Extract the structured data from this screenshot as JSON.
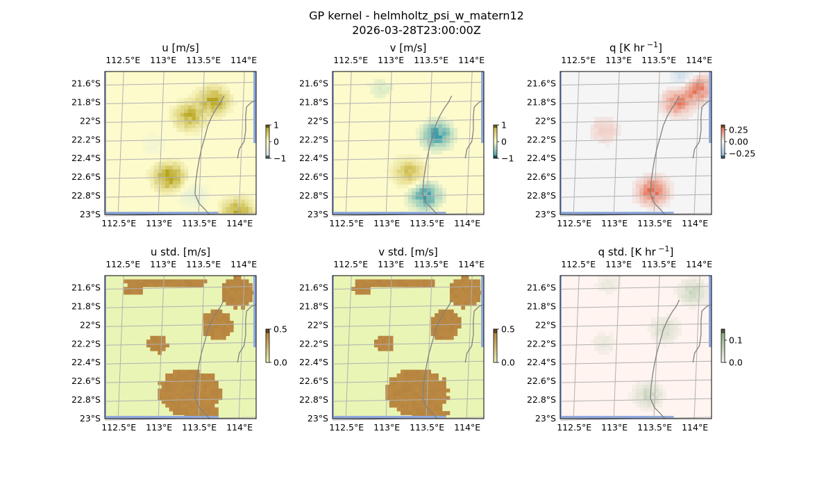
{
  "figure": {
    "title_line1": "GP kernel - helmholtz_psi_w_matern12",
    "title_line2": "2026-03-28T23:00:00Z"
  },
  "chart_data": [
    {
      "type": "heatmap",
      "title": "u [m/s]",
      "x_tick_labels": [
        "112.5°E",
        "113°E",
        "113.5°E",
        "114°E"
      ],
      "y_tick_labels": [
        "21.6°S",
        "21.8°S",
        "22°S",
        "22.2°S",
        "22.4°S",
        "22.6°S",
        "22.8°S",
        "23°S"
      ],
      "colorbar": {
        "ticks": [
          1,
          0,
          -1
        ],
        "tick_labels": [
          "1",
          "0",
          "−1"
        ],
        "range": [
          -1,
          1
        ]
      },
      "colors": {
        "background": "#fdfbcc",
        "positive": "#b7a41f",
        "negative": "#c6dfe3"
      },
      "blobs": [
        {
          "lon": 113.65,
          "lat": -21.78,
          "sign": 1,
          "value": 0.7
        },
        {
          "lon": 113.35,
          "lat": -21.95,
          "sign": 1,
          "value": 0.6
        },
        {
          "lon": 113.1,
          "lat": -22.6,
          "sign": 1,
          "value": 0.8
        },
        {
          "lon": 113.4,
          "lat": -22.8,
          "sign": -1,
          "value": 0.3
        },
        {
          "lon": 112.9,
          "lat": -22.25,
          "sign": -1,
          "value": 0.15
        },
        {
          "lon": 113.95,
          "lat": -22.98,
          "sign": 1,
          "value": 0.7
        }
      ]
    },
    {
      "type": "heatmap",
      "title": "v [m/s]",
      "x_tick_labels": [
        "112.5°E",
        "113°E",
        "113.5°E",
        "114°E"
      ],
      "y_tick_labels": [
        "21.6°S",
        "21.8°S",
        "22°S",
        "22.2°S",
        "22.4°S",
        "22.6°S",
        "22.8°S",
        "23°S"
      ],
      "colorbar": {
        "ticks": [
          1,
          0,
          -1
        ],
        "tick_labels": [
          "1",
          "0",
          "−1"
        ],
        "range": [
          -1,
          1
        ]
      },
      "colors": {
        "background": "#fdfbcc",
        "positive": "#c9b440",
        "negative": "#3a9da8"
      },
      "blobs": [
        {
          "lon": 113.6,
          "lat": -22.15,
          "sign": -1,
          "value": 0.7
        },
        {
          "lon": 113.25,
          "lat": -22.55,
          "sign": 1,
          "value": 0.6
        },
        {
          "lon": 113.45,
          "lat": -22.8,
          "sign": -1,
          "value": 0.7
        },
        {
          "lon": 112.9,
          "lat": -21.65,
          "sign": -1,
          "value": 0.12
        }
      ]
    },
    {
      "type": "heatmap",
      "title": "q [K hr",
      "title_sup": "−1",
      "title_end": "]",
      "x_tick_labels": [
        "112.5°E",
        "113°E",
        "113.5°E",
        "114°E"
      ],
      "y_tick_labels": [
        "21.6°S",
        "21.8°S",
        "22°S",
        "22.2°S",
        "22.4°S",
        "22.6°S",
        "22.8°S",
        "23°S"
      ],
      "colorbar": {
        "ticks": [
          0.25,
          0.0,
          -0.25
        ],
        "tick_labels": [
          "0.25",
          "0.00",
          "−0.25"
        ],
        "range": [
          -0.35,
          0.35
        ]
      },
      "colors": {
        "background": "#f5f5f5",
        "positive": "#e46a4c",
        "negative": "#8fb7d8"
      },
      "blobs": [
        {
          "lon": 113.45,
          "lat": -22.75,
          "sign": 1,
          "value": 0.25
        },
        {
          "lon": 113.75,
          "lat": -21.8,
          "sign": 1,
          "value": 0.2
        },
        {
          "lon": 114.0,
          "lat": -21.65,
          "sign": 1,
          "value": 0.25
        },
        {
          "lon": 113.85,
          "lat": -21.55,
          "sign": -1,
          "value": 0.12
        },
        {
          "lon": 112.85,
          "lat": -22.1,
          "sign": 1,
          "value": 0.08
        }
      ]
    },
    {
      "type": "heatmap",
      "title": "u std. [m/s]",
      "x_tick_labels": [
        "112.5°E",
        "113°E",
        "113.5°E",
        "114°E"
      ],
      "y_tick_labels": [
        "21.6°S",
        "21.8°S",
        "22°S",
        "22.2°S",
        "22.4°S",
        "22.6°S",
        "22.8°S",
        "23°S"
      ],
      "colorbar": {
        "ticks": [
          0.5,
          0.0
        ],
        "tick_labels": [
          "0.5",
          "0.0"
        ],
        "range": [
          0,
          0.5
        ]
      },
      "colors": {
        "background": "#e9f5b5",
        "high": "#bd8a43",
        "low": "#e9f5b5"
      },
      "patches": [
        {
          "lon": 113.35,
          "lat": -22.72,
          "rx": 0.42,
          "ry": 0.26
        },
        {
          "lon": 113.5,
          "lat": -22.95,
          "rx": 0.25,
          "ry": 0.1
        },
        {
          "lon": 112.95,
          "lat": -22.2,
          "rx": 0.14,
          "ry": 0.1
        },
        {
          "lon": 113.7,
          "lat": -22.0,
          "rx": 0.2,
          "ry": 0.18
        },
        {
          "lon": 113.95,
          "lat": -21.65,
          "rx": 0.22,
          "ry": 0.18
        },
        {
          "lon": 112.85,
          "lat": -21.55,
          "rx": 0.35,
          "ry": 0.05
        },
        {
          "lon": 112.65,
          "lat": -21.62,
          "rx": 0.12,
          "ry": 0.07
        },
        {
          "lon": 113.35,
          "lat": -21.55,
          "rx": 0.25,
          "ry": 0.05
        }
      ]
    },
    {
      "type": "heatmap",
      "title": "v std. [m/s]",
      "x_tick_labels": [
        "112.5°E",
        "113°E",
        "113.5°E",
        "114°E"
      ],
      "y_tick_labels": [
        "21.6°S",
        "21.8°S",
        "22°S",
        "22.2°S",
        "22.4°S",
        "22.6°S",
        "22.8°S",
        "23°S"
      ],
      "colorbar": {
        "ticks": [
          0.5,
          0.0
        ],
        "tick_labels": [
          "0.5",
          "0.0"
        ],
        "range": [
          0,
          0.5
        ]
      },
      "colors": {
        "background": "#e9f5b5",
        "high": "#bd8a43",
        "low": "#e9f5b5"
      },
      "patches": [
        {
          "lon": 113.35,
          "lat": -22.72,
          "rx": 0.42,
          "ry": 0.26
        },
        {
          "lon": 113.5,
          "lat": -22.95,
          "rx": 0.25,
          "ry": 0.1
        },
        {
          "lon": 112.95,
          "lat": -22.2,
          "rx": 0.14,
          "ry": 0.1
        },
        {
          "lon": 113.7,
          "lat": -22.0,
          "rx": 0.2,
          "ry": 0.18
        },
        {
          "lon": 113.95,
          "lat": -21.65,
          "rx": 0.22,
          "ry": 0.18
        },
        {
          "lon": 112.85,
          "lat": -21.55,
          "rx": 0.35,
          "ry": 0.05
        },
        {
          "lon": 112.65,
          "lat": -21.62,
          "rx": 0.12,
          "ry": 0.07
        },
        {
          "lon": 113.35,
          "lat": -21.55,
          "rx": 0.25,
          "ry": 0.05
        }
      ]
    },
    {
      "type": "heatmap",
      "title": "q std. [K hr",
      "title_sup": "−1",
      "title_end": "]",
      "x_tick_labels": [
        "112.5°E",
        "113°E",
        "113.5°E",
        "114°E"
      ],
      "y_tick_labels": [
        "21.6°S",
        "21.8°S",
        "22°S",
        "22.2°S",
        "22.4°S",
        "22.6°S",
        "22.8°S",
        "23°S"
      ],
      "colorbar": {
        "ticks": [
          0.1,
          0.0
        ],
        "tick_labels": [
          "0.1",
          "0.0"
        ],
        "range": [
          0,
          0.15
        ]
      },
      "colors": {
        "background": "#fff4f0",
        "high": "#8fb58a",
        "low": "#fff4f0"
      },
      "blobs": [
        {
          "lon": 113.4,
          "lat": -22.75,
          "sign": 1,
          "value": 0.05
        },
        {
          "lon": 113.95,
          "lat": -21.65,
          "sign": 1,
          "value": 0.05
        },
        {
          "lon": 113.6,
          "lat": -22.05,
          "sign": 1,
          "value": 0.04
        },
        {
          "lon": 112.85,
          "lat": -22.2,
          "sign": 1,
          "value": 0.02
        },
        {
          "lon": 112.9,
          "lat": -21.55,
          "sign": 1,
          "value": 0.02
        }
      ]
    }
  ]
}
